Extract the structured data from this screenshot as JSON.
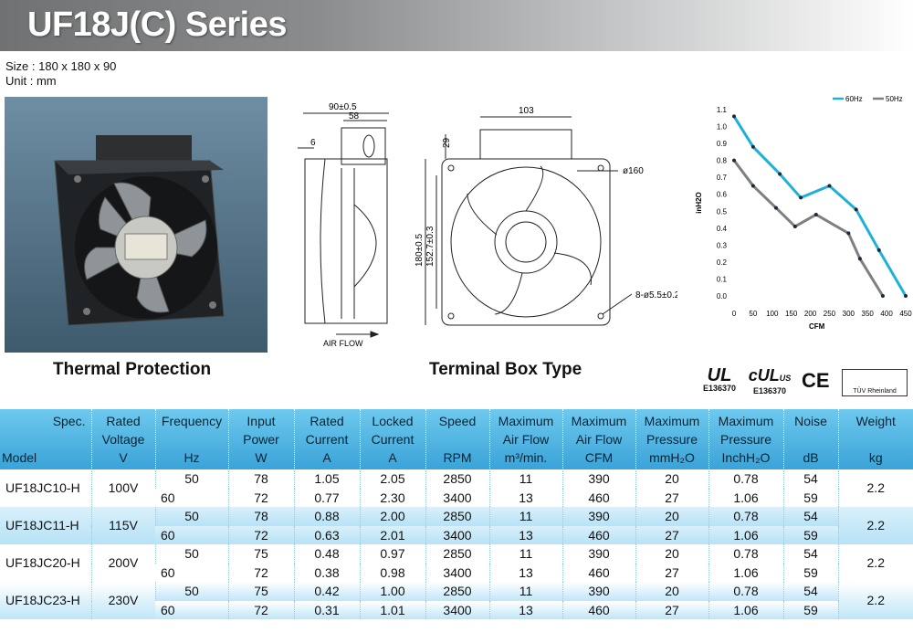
{
  "title": "UF18J(C) Series",
  "size_label": "Size : 180 x 180 x 90",
  "unit_label": "Unit : mm",
  "captions": {
    "thermal": "Thermal Protection",
    "terminal": "Terminal Box Type"
  },
  "drawing_labels": {
    "side_width": "90±0.5",
    "side_inner": "58",
    "side_six": "6",
    "air_flow": "AIR FLOW",
    "front_box": "103",
    "front_box_h": "29",
    "front_diameter": "ø160",
    "front_height": "180±0.5",
    "front_inner": "152.7±0.3",
    "front_holes": "8-ø5.5±0.2"
  },
  "certs": {
    "ul1": "E136370",
    "ul2": "E136370",
    "ce": "CE",
    "tuv": "TÜV Rheinland"
  },
  "chart_data": {
    "type": "line",
    "xlabel": "CFM",
    "ylabel": "inH2O",
    "xlim": [
      0,
      450
    ],
    "ylim": [
      0,
      1.1
    ],
    "x_ticks": [
      0,
      50,
      100,
      150,
      200,
      250,
      300,
      350,
      400,
      450
    ],
    "y_ticks": [
      0.0,
      0.1,
      0.2,
      0.3,
      0.4,
      0.5,
      0.6,
      0.7,
      0.8,
      0.9,
      1.0,
      1.1
    ],
    "legend_position": "top",
    "grid": false,
    "series": [
      {
        "name": "60Hz",
        "color": "#1eb0d9",
        "x": [
          0,
          50,
          120,
          175,
          250,
          320,
          380,
          450
        ],
        "y": [
          1.06,
          0.88,
          0.72,
          0.58,
          0.65,
          0.51,
          0.27,
          0.0
        ]
      },
      {
        "name": "50Hz",
        "color": "#7d7f81",
        "x": [
          0,
          50,
          110,
          160,
          215,
          300,
          330,
          390
        ],
        "y": [
          0.8,
          0.65,
          0.52,
          0.41,
          0.48,
          0.37,
          0.22,
          0.0
        ]
      }
    ]
  },
  "table": {
    "headers": {
      "spec": "Spec.",
      "model": "Model",
      "voltage": [
        "Rated",
        "Voltage",
        "V"
      ],
      "frequency": [
        "Frequency",
        "",
        "Hz"
      ],
      "power": [
        "Input",
        "Power",
        "W"
      ],
      "current": [
        "Rated",
        "Current",
        "A"
      ],
      "locked": [
        "Locked",
        "Current",
        "A"
      ],
      "speed": [
        "Speed",
        "",
        "RPM"
      ],
      "airflow_m3": [
        "Maximum",
        "Air Flow",
        "m³/min."
      ],
      "airflow_cfm": [
        "Maximum",
        "Air Flow",
        "CFM"
      ],
      "pressure_mm": [
        "Maximum",
        "Pressure",
        "mmH₂O"
      ],
      "pressure_in": [
        "Maximum",
        "Pressure",
        "InchH₂O"
      ],
      "noise": [
        "Noise",
        "",
        "dB"
      ],
      "weight": [
        "Weight",
        "",
        "kg"
      ]
    },
    "rows": [
      {
        "model": "UF18JC10-H",
        "voltage": "100V",
        "weight": "2.2",
        "sub": [
          {
            "freq": "50",
            "power": "78",
            "current": "1.05",
            "locked": "2.05",
            "rpm": "2850",
            "m3": "11",
            "cfm": "390",
            "mm": "20",
            "inch": "0.78",
            "db": "54"
          },
          {
            "freq": "60",
            "power": "72",
            "current": "0.77",
            "locked": "2.30",
            "rpm": "3400",
            "m3": "13",
            "cfm": "460",
            "mm": "27",
            "inch": "1.06",
            "db": "59"
          }
        ]
      },
      {
        "model": "UF18JC11-H",
        "voltage": "115V",
        "weight": "2.2",
        "sub": [
          {
            "freq": "50",
            "power": "78",
            "current": "0.88",
            "locked": "2.00",
            "rpm": "2850",
            "m3": "11",
            "cfm": "390",
            "mm": "20",
            "inch": "0.78",
            "db": "54"
          },
          {
            "freq": "60",
            "power": "72",
            "current": "0.63",
            "locked": "2.01",
            "rpm": "3400",
            "m3": "13",
            "cfm": "460",
            "mm": "27",
            "inch": "1.06",
            "db": "59"
          }
        ]
      },
      {
        "model": "UF18JC20-H",
        "voltage": "200V",
        "weight": "2.2",
        "sub": [
          {
            "freq": "50",
            "power": "75",
            "current": "0.48",
            "locked": "0.97",
            "rpm": "2850",
            "m3": "11",
            "cfm": "390",
            "mm": "20",
            "inch": "0.78",
            "db": "54"
          },
          {
            "freq": "60",
            "power": "72",
            "current": "0.38",
            "locked": "0.98",
            "rpm": "3400",
            "m3": "13",
            "cfm": "460",
            "mm": "27",
            "inch": "1.06",
            "db": "59"
          }
        ]
      },
      {
        "model": "UF18JC23-H",
        "voltage": "230V",
        "weight": "2.2",
        "sub": [
          {
            "freq": "50",
            "power": "75",
            "current": "0.42",
            "locked": "1.00",
            "rpm": "2850",
            "m3": "11",
            "cfm": "390",
            "mm": "20",
            "inch": "0.78",
            "db": "54"
          },
          {
            "freq": "60",
            "power": "72",
            "current": "0.31",
            "locked": "1.01",
            "rpm": "3400",
            "m3": "13",
            "cfm": "460",
            "mm": "27",
            "inch": "1.06",
            "db": "59"
          }
        ]
      }
    ]
  }
}
